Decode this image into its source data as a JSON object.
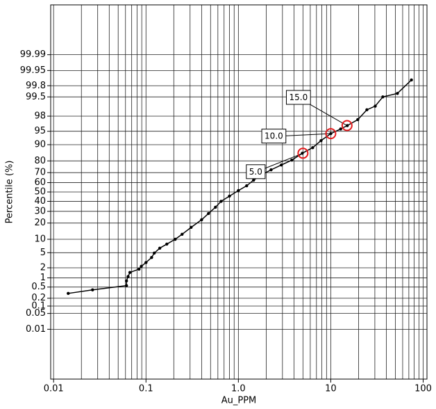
{
  "chart_data": {
    "type": "line",
    "x_label": "Au_PPM",
    "y_label": "Percentile (%)",
    "x_scale": "log",
    "y_scale": "probability",
    "grid": true,
    "color": "#000000",
    "annotation_color": "#e41a1c",
    "xlim": [
      0.0093,
      110
    ],
    "xticks": [
      0.01,
      0.1,
      {
        "value": 1,
        "label": "1.0"
      },
      10,
      100
    ],
    "xminorticks": [
      0.02,
      0.03,
      0.04,
      0.05,
      0.06,
      0.07,
      0.08,
      0.09,
      0.2,
      0.3,
      0.4,
      0.5,
      0.6,
      0.7,
      0.8,
      0.9,
      2,
      3,
      4,
      5,
      6,
      7,
      8,
      9,
      20,
      30,
      40,
      50,
      60,
      70,
      80,
      90
    ],
    "ylim": [
      2e-05,
      99.99998
    ],
    "yticks": [
      0.01,
      0.05,
      0.1,
      0.2,
      0.5,
      1,
      2,
      5,
      10,
      20,
      30,
      40,
      50,
      60,
      70,
      80,
      90,
      95,
      98,
      99.5,
      99.8,
      99.95,
      99.99
    ],
    "x": [
      0.0144,
      0.0264,
      0.0615,
      0.0615,
      0.064,
      0.067,
      0.084,
      0.089,
      0.1,
      0.115,
      0.123,
      0.141,
      0.168,
      0.207,
      0.246,
      0.308,
      0.4,
      0.475,
      0.565,
      0.65,
      0.8,
      1.0,
      1.23,
      1.46,
      1.74,
      2.26,
      2.92,
      3.79,
      4.92,
      6.37,
      7.85,
      10,
      12.8,
      15.1,
      19.6,
      24.6,
      30.3,
      36.6,
      52.6,
      74.7
    ],
    "values": [
      0.3,
      0.4,
      0.56,
      0.8,
      1.1,
      1.46,
      1.83,
      2.2,
      2.8,
      3.8,
      4.9,
      6.4,
      7.9,
      10,
      12.6,
      16.9,
      22.6,
      28,
      34,
      40,
      45.5,
      51.5,
      56.7,
      62.5,
      67.4,
      72.6,
      76.8,
      80.6,
      85.3,
      88.5,
      91.8,
      94.3,
      95.6,
      96.4,
      97.5,
      98.7,
      99.0,
      99.5,
      99.62,
      99.88
    ],
    "annotations": [
      {
        "x": 5,
        "y": 85.3,
        "label": "5.0"
      },
      {
        "x": 10,
        "y": 94.3,
        "label": "10.0"
      },
      {
        "x": 15,
        "y": 96.4,
        "label": "15.0"
      }
    ]
  }
}
